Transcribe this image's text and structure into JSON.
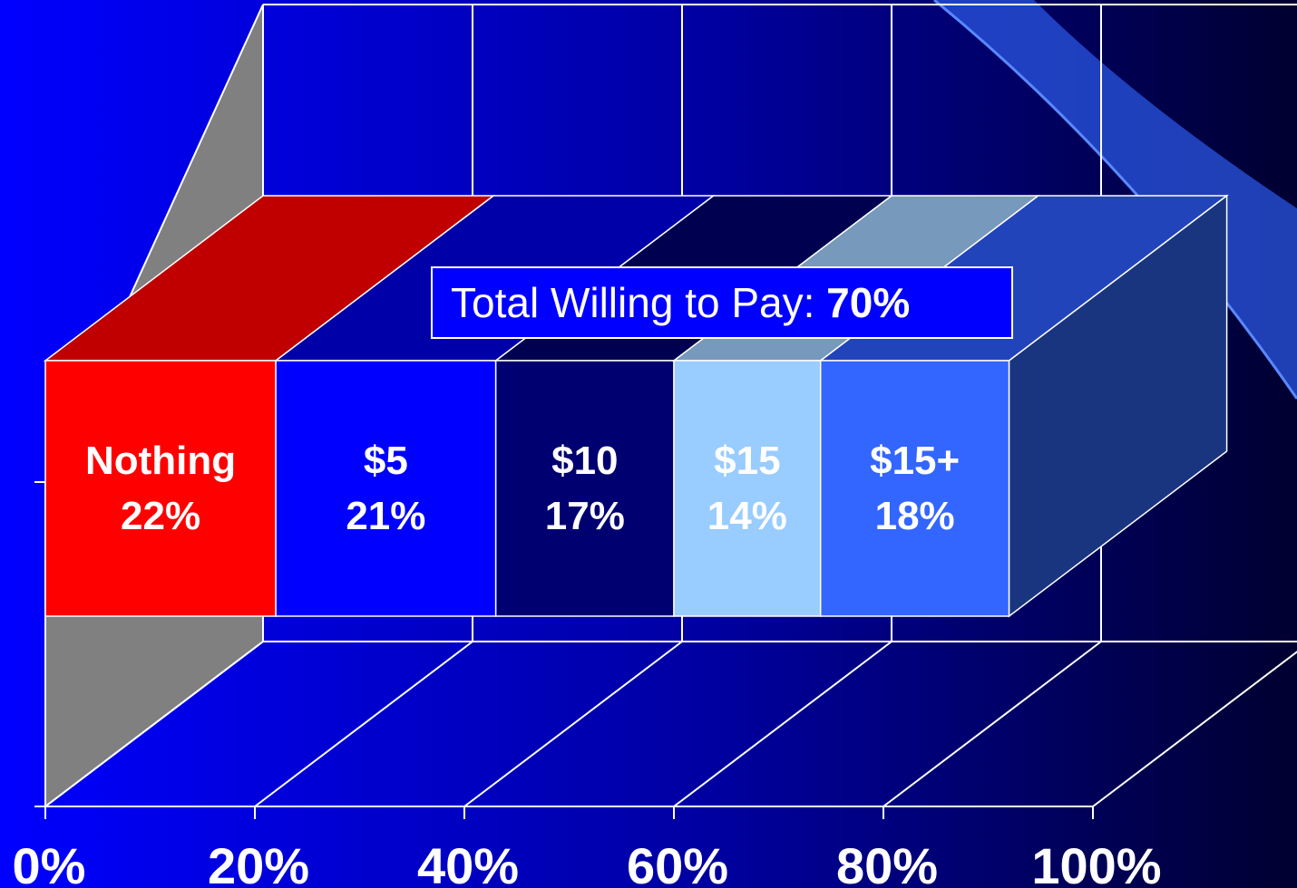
{
  "chart_data": {
    "type": "bar",
    "orientation": "horizontal",
    "stacked": true,
    "three_d": true,
    "series": [
      {
        "name": "Nothing",
        "color": "#ff0000",
        "top_color": "#c00000",
        "values": [
          22
        ],
        "value_labels": [
          "22%"
        ]
      },
      {
        "name": "$5",
        "color": "#0000ff",
        "top_color": "#0000a8",
        "values": [
          21
        ],
        "value_labels": [
          "21%"
        ]
      },
      {
        "name": "$10",
        "color": "#000070",
        "top_color": "#000050",
        "values": [
          17
        ],
        "value_labels": [
          "17%"
        ]
      },
      {
        "name": "$15",
        "color": "#99ccff",
        "top_color": "#7799bb",
        "values": [
          14
        ],
        "value_labels": [
          "14%"
        ]
      },
      {
        "name": "$15+",
        "color": "#3366ff",
        "top_color": "#2244bb",
        "values": [
          18
        ],
        "value_labels": [
          "18%"
        ]
      }
    ],
    "side_color": "#1a3580",
    "xlim": [
      0,
      100
    ],
    "xticks": [
      {
        "value": 0,
        "label": "0%"
      },
      {
        "value": 20,
        "label": "20%"
      },
      {
        "value": 40,
        "label": "40%"
      },
      {
        "value": 60,
        "label": "60%"
      },
      {
        "value": 80,
        "label": "80%"
      },
      {
        "value": 100,
        "label": "100%"
      }
    ],
    "grid": true,
    "annotation": {
      "text": "Total Willing to Pay:",
      "emphasis": "70%"
    }
  }
}
